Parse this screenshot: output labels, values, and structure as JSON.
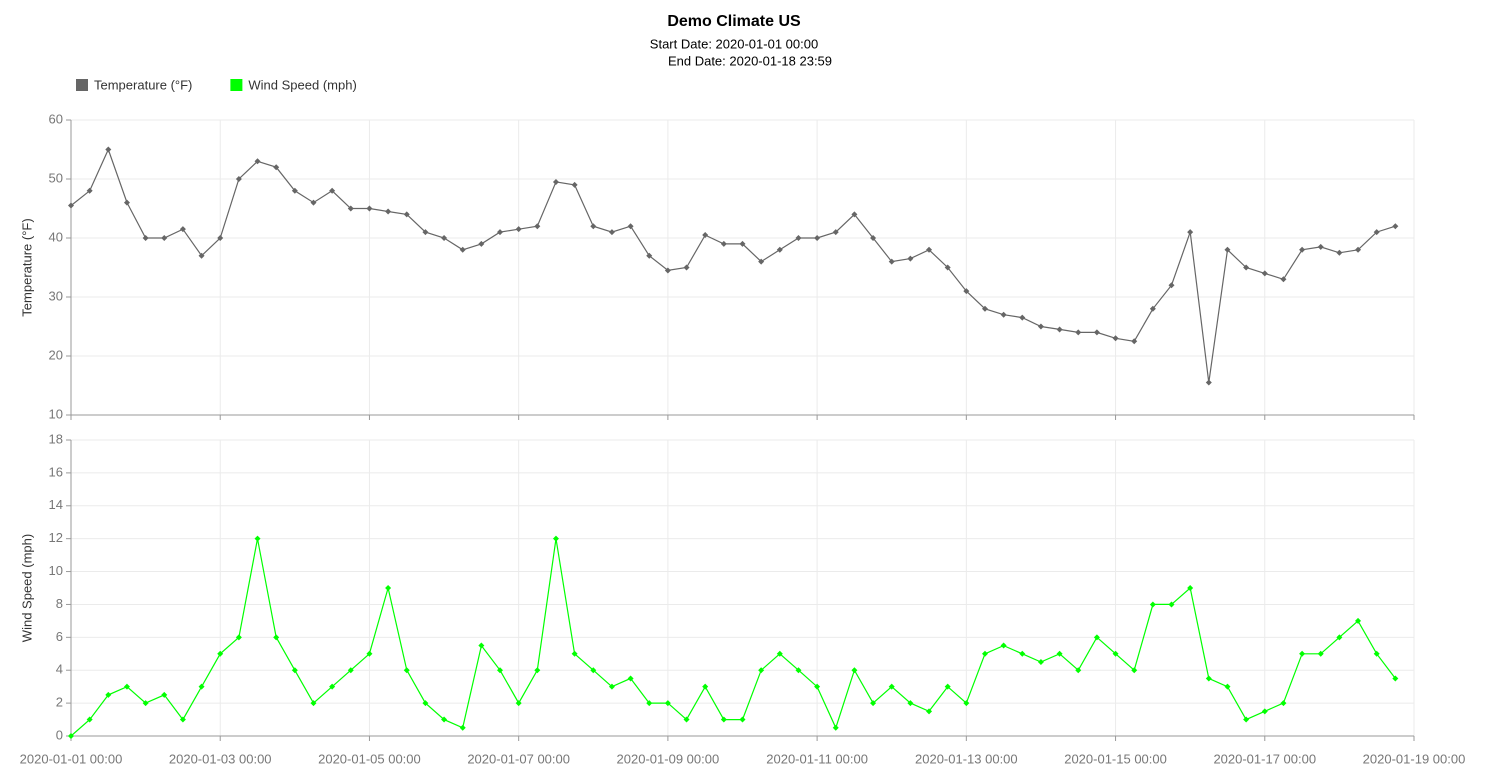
{
  "chart_data": {
    "type": "line",
    "title": "Demo Climate US",
    "subtitle": [
      "Start Date: 2020-01-01 00:00",
      "End Date: 2020-01-18 23:59"
    ],
    "x": [
      "2020-01-01 00:00",
      "2020-01-01 06:00",
      "2020-01-01 12:00",
      "2020-01-01 18:00",
      "2020-01-02 00:00",
      "2020-01-02 06:00",
      "2020-01-02 12:00",
      "2020-01-02 18:00",
      "2020-01-03 00:00",
      "2020-01-03 06:00",
      "2020-01-03 12:00",
      "2020-01-03 18:00",
      "2020-01-04 00:00",
      "2020-01-04 06:00",
      "2020-01-04 12:00",
      "2020-01-04 18:00",
      "2020-01-05 00:00",
      "2020-01-05 06:00",
      "2020-01-05 12:00",
      "2020-01-05 18:00",
      "2020-01-06 00:00",
      "2020-01-06 06:00",
      "2020-01-06 12:00",
      "2020-01-06 18:00",
      "2020-01-07 00:00",
      "2020-01-07 06:00",
      "2020-01-07 12:00",
      "2020-01-07 18:00",
      "2020-01-08 00:00",
      "2020-01-08 06:00",
      "2020-01-08 12:00",
      "2020-01-08 18:00",
      "2020-01-09 00:00",
      "2020-01-09 06:00",
      "2020-01-09 12:00",
      "2020-01-09 18:00",
      "2020-01-10 00:00",
      "2020-01-10 06:00",
      "2020-01-10 12:00",
      "2020-01-10 18:00",
      "2020-01-11 00:00",
      "2020-01-11 06:00",
      "2020-01-11 12:00",
      "2020-01-11 18:00",
      "2020-01-12 00:00",
      "2020-01-12 06:00",
      "2020-01-12 12:00",
      "2020-01-12 18:00",
      "2020-01-13 00:00",
      "2020-01-13 06:00",
      "2020-01-13 12:00",
      "2020-01-13 18:00",
      "2020-01-14 00:00",
      "2020-01-14 06:00",
      "2020-01-14 12:00",
      "2020-01-14 18:00",
      "2020-01-15 00:00",
      "2020-01-15 06:00",
      "2020-01-15 12:00",
      "2020-01-15 18:00",
      "2020-01-16 00:00",
      "2020-01-16 06:00",
      "2020-01-16 12:00",
      "2020-01-16 18:00",
      "2020-01-17 00:00",
      "2020-01-17 06:00",
      "2020-01-17 12:00",
      "2020-01-17 18:00",
      "2020-01-18 00:00",
      "2020-01-18 06:00",
      "2020-01-18 12:00",
      "2020-01-18 18:00"
    ],
    "xlim": [
      "2020-01-01 00:00",
      "2020-01-19 00:00"
    ],
    "xticks": [
      "2020-01-01 00:00",
      "2020-01-03 00:00",
      "2020-01-05 00:00",
      "2020-01-07 00:00",
      "2020-01-09 00:00",
      "2020-01-11 00:00",
      "2020-01-13 00:00",
      "2020-01-15 00:00",
      "2020-01-17 00:00",
      "2020-01-19 00:00"
    ],
    "grid": true,
    "series": [
      {
        "name": "Temperature (°F)",
        "color": "#666666",
        "y_label": "Temperature (°F)",
        "ylim": [
          10,
          60
        ],
        "yticks": [
          10,
          20,
          30,
          40,
          50,
          60
        ],
        "values": [
          45.5,
          48,
          55,
          46,
          40,
          40,
          41.5,
          37,
          40,
          50,
          53,
          52,
          48,
          46,
          48,
          45,
          45,
          44.5,
          44,
          41,
          40,
          38,
          39,
          41,
          41.5,
          42,
          49.5,
          49,
          42,
          41,
          42,
          37,
          34.5,
          35,
          40.5,
          39,
          39,
          36,
          38,
          40,
          40,
          41,
          44,
          40,
          36,
          36.5,
          38,
          35,
          31,
          28,
          27,
          26.5,
          25,
          24.5,
          24,
          24,
          23,
          22.5,
          28,
          32,
          41,
          15.5,
          38,
          35,
          34,
          33,
          38,
          38.5,
          37.5,
          38,
          41,
          42
        ]
      },
      {
        "name": "Wind Speed (mph)",
        "color": "#00ff00",
        "y_label": "Wind Speed (mph)",
        "ylim": [
          0,
          18
        ],
        "yticks": [
          0,
          2,
          4,
          6,
          8,
          10,
          12,
          14,
          16,
          18
        ],
        "values": [
          0,
          1,
          2.5,
          3,
          2,
          2.5,
          1,
          3,
          5,
          6,
          12,
          6,
          4,
          2,
          3,
          4,
          5,
          9,
          4,
          2,
          1,
          0.5,
          5.5,
          4,
          2,
          4,
          12,
          5,
          4,
          3,
          3.5,
          2,
          2,
          1,
          3,
          1,
          1,
          4,
          5,
          4,
          3,
          0.5,
          4,
          2,
          3,
          2,
          1.5,
          3,
          2,
          5,
          5.5,
          5,
          4.5,
          5,
          4,
          6,
          5,
          4,
          8,
          8,
          9,
          3.5,
          3,
          1,
          1.5,
          2,
          5,
          5,
          6,
          7,
          5,
          3.5
        ]
      }
    ]
  }
}
